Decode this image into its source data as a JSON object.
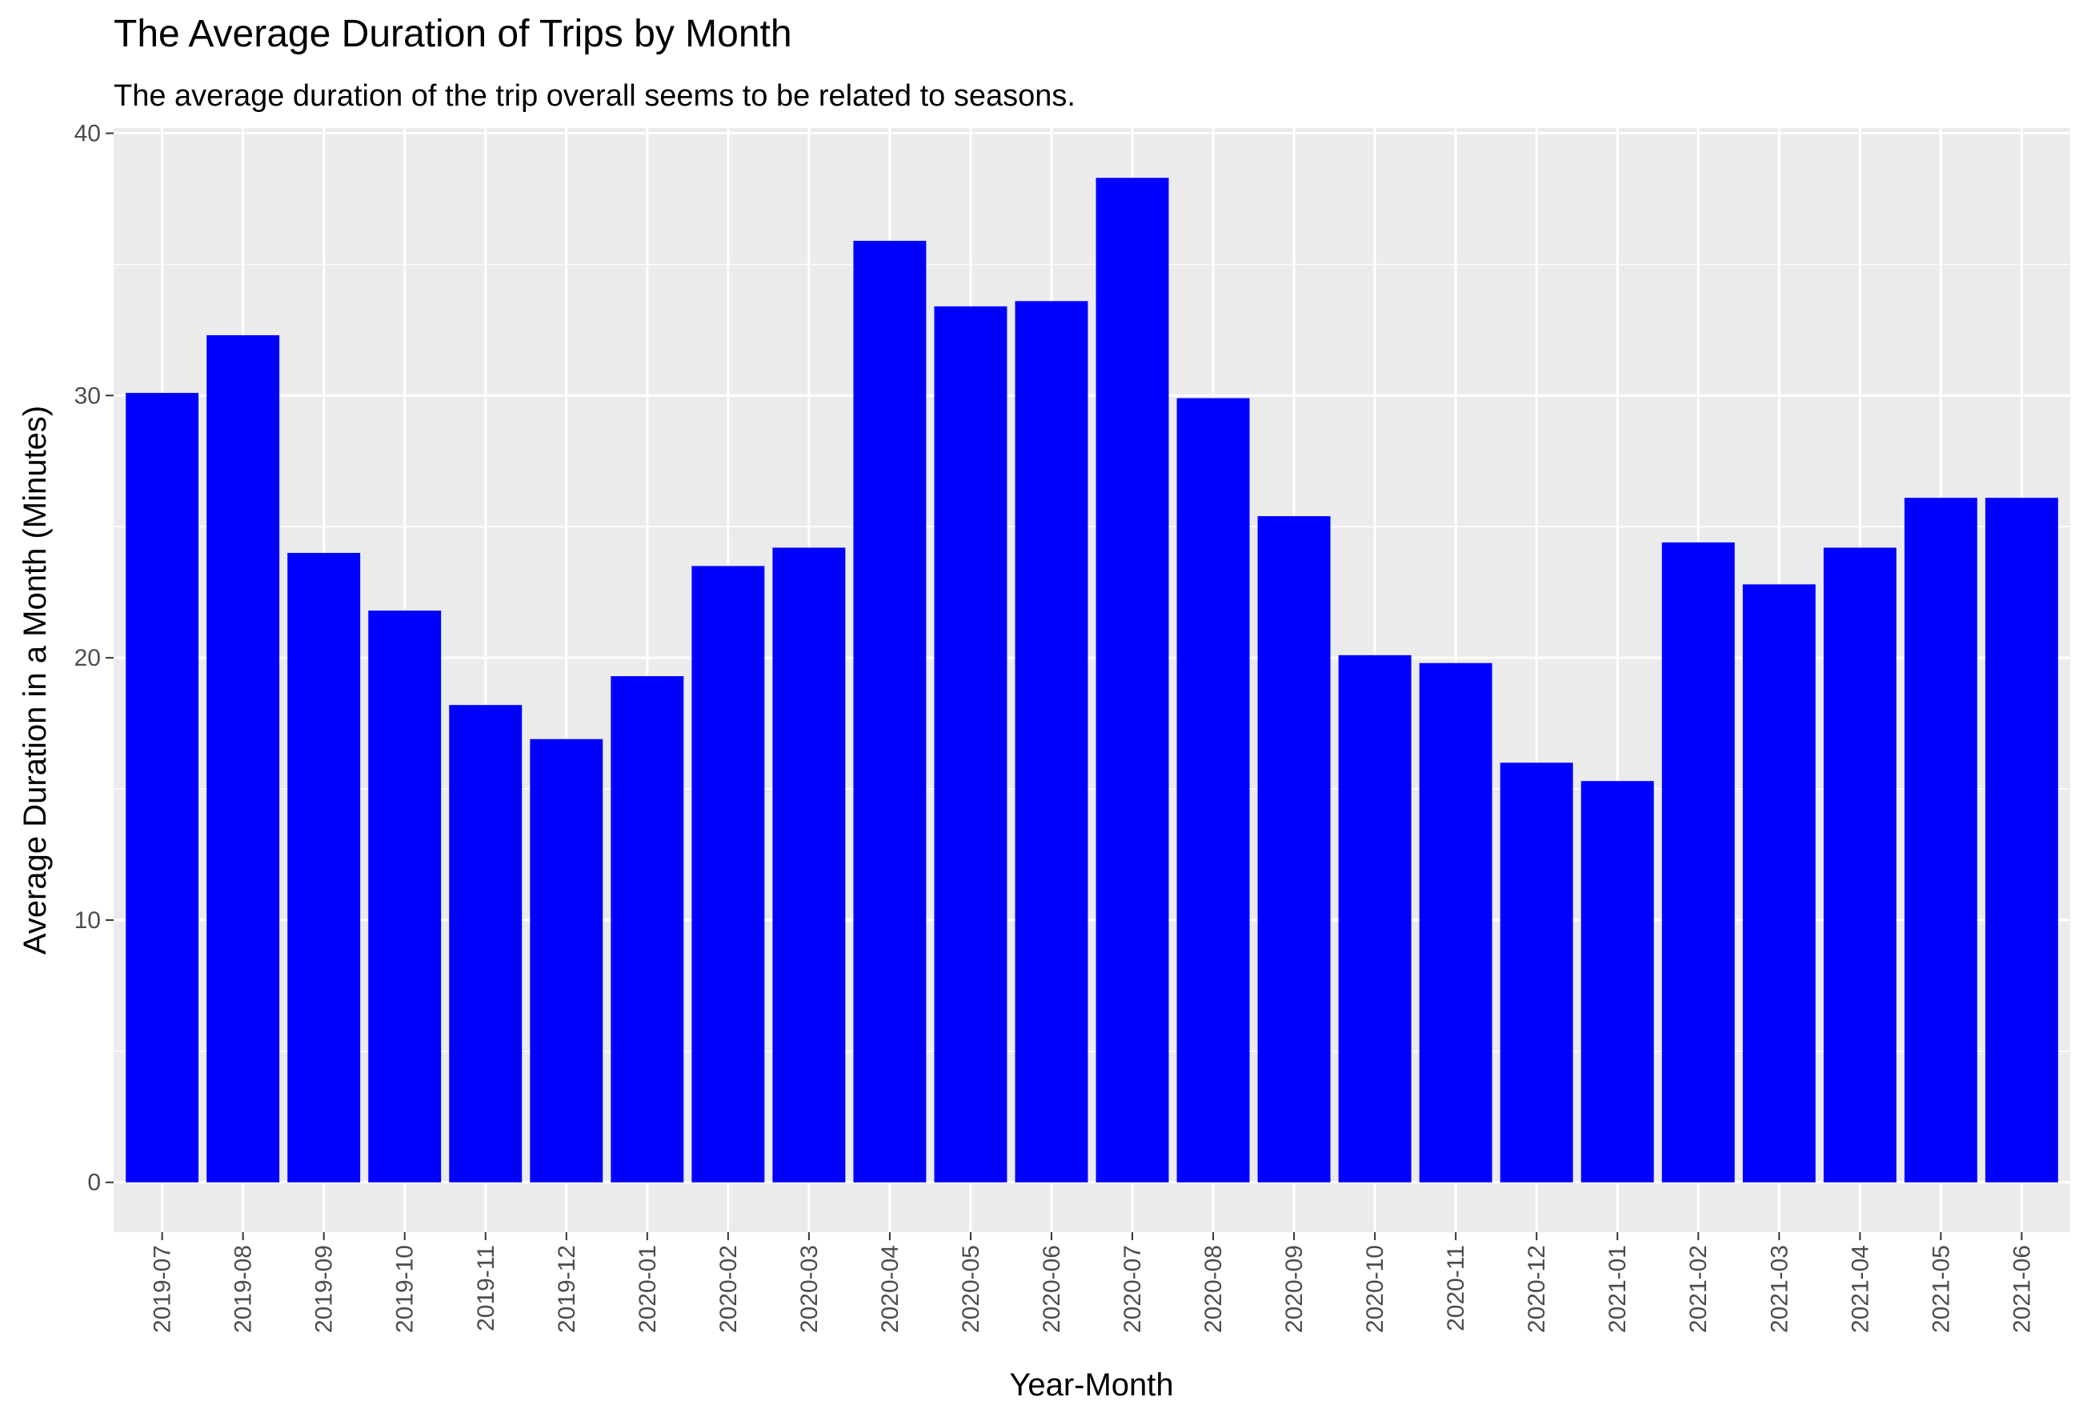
{
  "chart_data": {
    "type": "bar",
    "title": "The Average Duration of Trips by Month",
    "subtitle": "The average duration of the trip overall seems to be related to seasons.",
    "xlabel": "Year-Month",
    "ylabel": "Average Duration in a Month (Minutes)",
    "categories": [
      "2019-07",
      "2019-08",
      "2019-09",
      "2019-10",
      "2019-11",
      "2019-12",
      "2020-01",
      "2020-02",
      "2020-03",
      "2020-04",
      "2020-05",
      "2020-06",
      "2020-07",
      "2020-08",
      "2020-09",
      "2020-10",
      "2020-11",
      "2020-12",
      "2021-01",
      "2021-02",
      "2021-03",
      "2021-04",
      "2021-05",
      "2021-06"
    ],
    "values": [
      30.1,
      32.3,
      24.0,
      21.8,
      18.2,
      16.9,
      19.3,
      23.5,
      24.2,
      35.9,
      33.4,
      33.6,
      38.3,
      29.9,
      25.4,
      20.1,
      19.8,
      16.0,
      15.3,
      24.4,
      22.8,
      24.2,
      26.1,
      26.1
    ],
    "ylim": [
      -1.9,
      40.2
    ],
    "yticks": [
      0,
      10,
      20,
      30,
      40
    ],
    "ytick_labels": [
      "0",
      "10",
      "20",
      "30",
      "40"
    ],
    "bar_color": "#0000FF",
    "panel_background": "#EBEBEB",
    "grid_color": "#FFFFFF",
    "grid": true
  }
}
